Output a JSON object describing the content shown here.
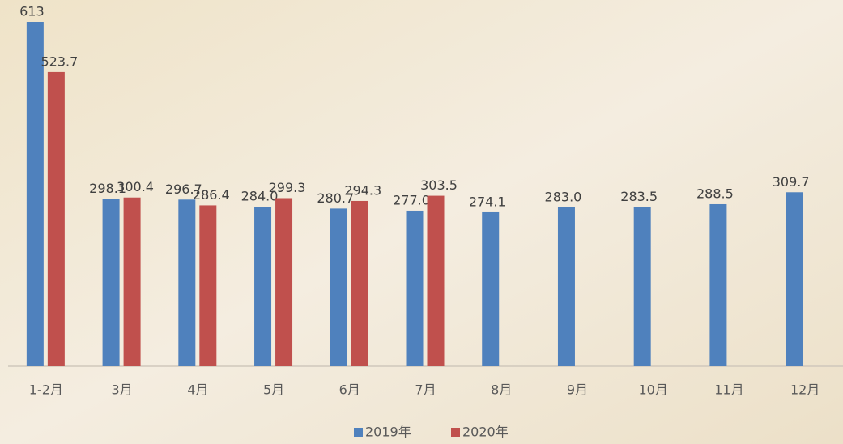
{
  "chart_data": {
    "type": "bar",
    "categories": [
      "1-2月",
      "3月",
      "4月",
      "5月",
      "6月",
      "7月",
      "8月",
      "9月",
      "10月",
      "11月",
      "12月"
    ],
    "series": [
      {
        "name": "2019年",
        "color": "#4f81bd",
        "values": [
          613,
          298.1,
          296.7,
          284.0,
          280.7,
          277.0,
          274.1,
          283.0,
          283.5,
          288.5,
          309.7
        ],
        "value_labels": [
          "613",
          "298.1",
          "296.7",
          "284.0",
          "280.7",
          "277.0",
          "274.1",
          "283.0",
          "283.5",
          "288.5",
          "309.7"
        ]
      },
      {
        "name": "2020年",
        "color": "#c0504d",
        "values": [
          523.7,
          300.4,
          286.4,
          299.3,
          294.3,
          303.5,
          null,
          null,
          null,
          null,
          null
        ],
        "value_labels": [
          "523.7",
          "300.4",
          "286.4",
          "299.3",
          "294.3",
          "303.5",
          null,
          null,
          null,
          null,
          null
        ]
      }
    ]
  }
}
